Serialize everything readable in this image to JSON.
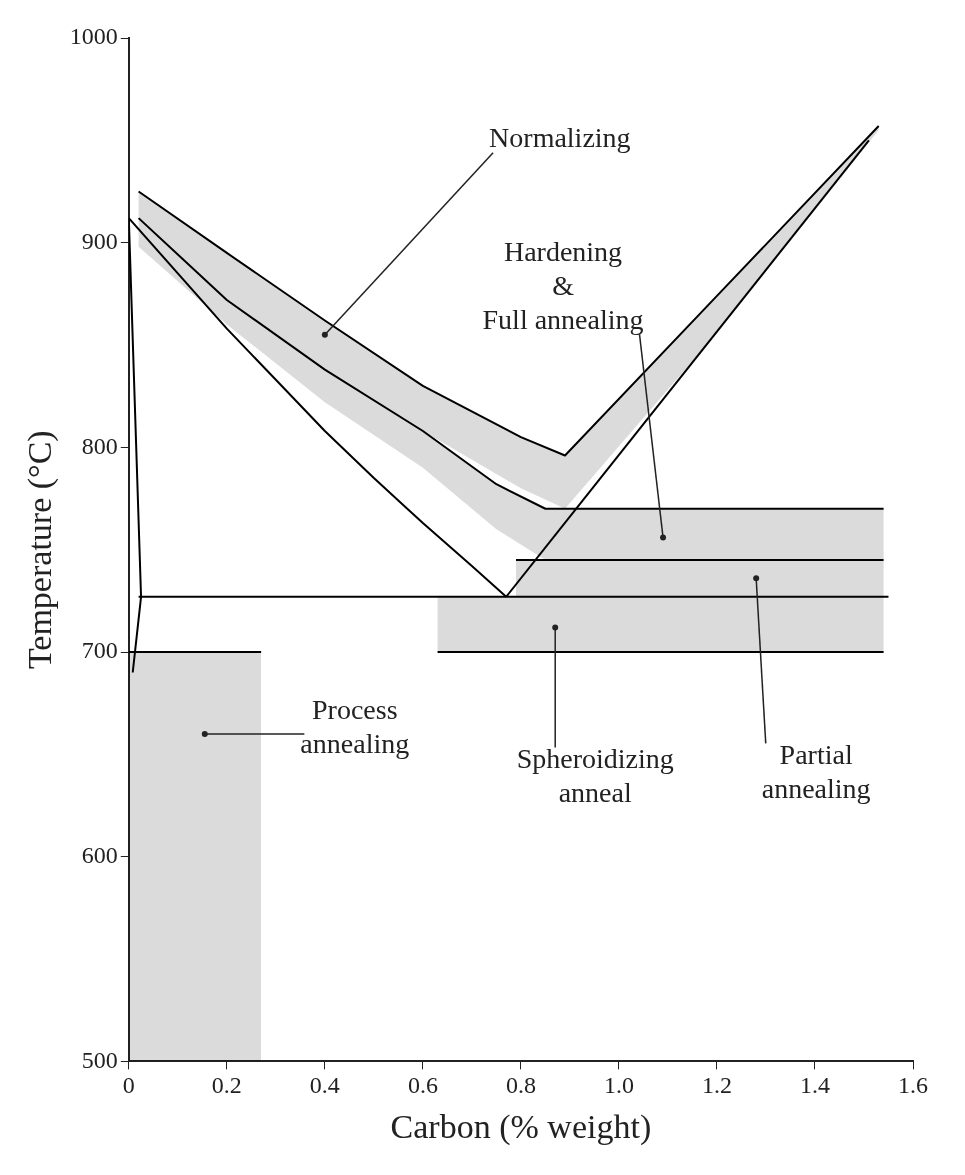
{
  "chart_data": {
    "type": "line",
    "xlabel": "Carbon (% weight)",
    "ylabel": "Temperature (°C)",
    "xlim": [
      0,
      1.6
    ],
    "ylim": [
      500,
      1000
    ],
    "xticks": [
      0,
      0.2,
      0.4,
      0.6,
      0.8,
      {
        "value": 1,
        "label": "1.0"
      },
      1.2,
      1.4,
      1.6
    ],
    "yticks": [
      500,
      600,
      700,
      800,
      900,
      1000
    ],
    "series": [
      {
        "type": "area",
        "color": "#000000",
        "x": [
          0,
          0.27
        ],
        "values": [
          700,
          700
        ]
      },
      {
        "color": "#000000",
        "x": [
          0.02,
          0.2,
          0.4,
          0.6,
          0.8,
          0.89,
          1.2,
          1.53
        ],
        "values": [
          925,
          895,
          862,
          830,
          805,
          796,
          874,
          957
        ],
        "lower": [
          912,
          872,
          838,
          808,
          780,
          770,
          856,
          955
        ],
        "upper": [
          925,
          895,
          862,
          830,
          805,
          796,
          874,
          957
        ]
      },
      {
        "color": "#000000",
        "x": [
          0.02,
          0.2,
          0.4,
          0.6,
          0.75,
          0.85,
          1.0,
          1.54
        ],
        "values": [
          912,
          872,
          838,
          808,
          782,
          770,
          770,
          770
        ],
        "lower": [
          898,
          860,
          822,
          790,
          760,
          745,
          745,
          745
        ],
        "upper": [
          912,
          872,
          838,
          808,
          782,
          770,
          770,
          770
        ]
      },
      {
        "color": "#000000",
        "x": [
          0.79,
          1.54
        ],
        "values": [
          745,
          745
        ],
        "lower": [
          727,
          727
        ],
        "upper": [
          745,
          745
        ]
      },
      {
        "color": "#000000",
        "x": [
          0.63,
          1.54
        ],
        "values": [
          700,
          700
        ],
        "lower": [
          700,
          700
        ],
        "upper": [
          727,
          727
        ]
      },
      {
        "color": "#000000",
        "x": [
          0,
          0.1,
          0.2,
          0.3,
          0.4,
          0.5,
          0.6,
          0.7,
          0.77
        ],
        "values": [
          912,
          885,
          858,
          833,
          808,
          785,
          763,
          742,
          727
        ]
      },
      {
        "color": "#000000",
        "x": [
          0.02,
          1.55
        ],
        "values": [
          727,
          727
        ]
      },
      {
        "color": "#000000",
        "x": [
          0.77,
          1.51
        ],
        "values": [
          727,
          950
        ]
      },
      {
        "color": "#000000",
        "x": [
          0,
          0.025,
          0.008
        ],
        "values": [
          912,
          727,
          690
        ]
      }
    ],
    "annotations": [
      {
        "text": "Normalizing",
        "x": 0.4,
        "y": 855
      },
      {
        "text": "Hardening\n&\nFull annealing",
        "x": 1.09,
        "y": 756
      },
      {
        "text": "Process\nannealing",
        "x": 0.155,
        "y": 660
      },
      {
        "text": "Spheroidizing\nanneal",
        "x": 0.87,
        "y": 712
      },
      {
        "text": "Partial\nannealing",
        "x": 1.28,
        "y": 736
      }
    ]
  }
}
